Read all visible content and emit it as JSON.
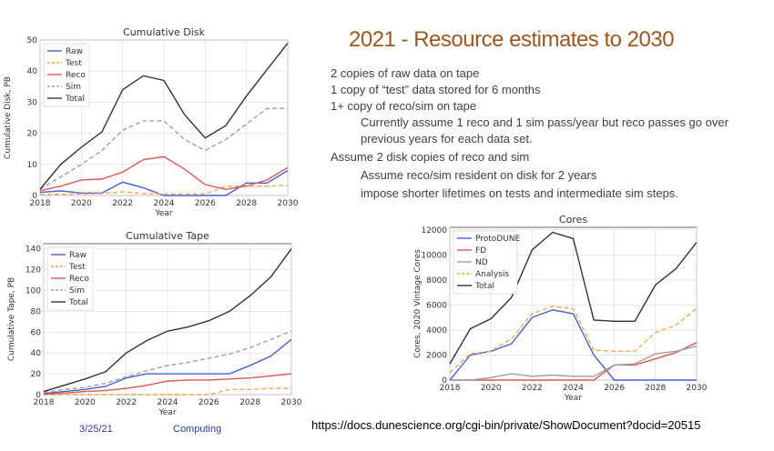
{
  "slide": {
    "title": "2021 - Resource estimates to 2030",
    "bullets": [
      {
        "level": 1,
        "text": "2 copies of raw data on tape"
      },
      {
        "level": 1,
        "text": "1 copy of “test” data stored for 6 months"
      },
      {
        "level": 1,
        "text": "1+ copy of reco/sim on tape"
      },
      {
        "level": 2,
        "text": "Currently assume 1 reco and 1 sim pass/year but reco passes go over previous years for each data set."
      },
      {
        "level": 1,
        "text": "Assume 2 disk copies of reco and sim"
      },
      {
        "level": 2,
        "text": "Assume reco/sim resident on disk for 2 years"
      },
      {
        "level": 2,
        "text": "impose shorter lifetimes on tests and intermediate sim steps."
      }
    ],
    "footer_date": "3/25/21",
    "footer_topic": "Computing",
    "footer_url": "https://docs.dunescience.org/cgi-bin/private/ShowDocument?docid=20515"
  },
  "chart_data": [
    {
      "type": "line",
      "title": "Cumulative Disk",
      "xlabel": "Year",
      "ylabel": "Cumulative Disk, PB",
      "xlim": [
        2018,
        2030
      ],
      "ylim": [
        0,
        50
      ],
      "xticks": [
        2018,
        2020,
        2022,
        2024,
        2026,
        2028,
        2030
      ],
      "yticks": [
        0,
        10,
        20,
        30,
        40,
        50
      ],
      "grid": true,
      "legend": "top-left",
      "x": [
        2018,
        2019,
        2020,
        2021,
        2022,
        2023,
        2024,
        2025,
        2026,
        2027,
        2028,
        2029,
        2030
      ],
      "series": [
        {
          "name": "Raw",
          "color": "#4c5fd5",
          "dash": "",
          "values": [
            1,
            1.5,
            0.8,
            0.8,
            4.3,
            2.5,
            0,
            0,
            0,
            0,
            4,
            4,
            8
          ]
        },
        {
          "name": "Test",
          "color": "#f0a84a",
          "dash": "5,3",
          "values": [
            0.3,
            0.4,
            0.5,
            0.6,
            1.2,
            0.6,
            0.5,
            0.5,
            0.5,
            3,
            3,
            3,
            3.3
          ]
        },
        {
          "name": "Reco",
          "color": "#e05555",
          "dash": "",
          "values": [
            1.5,
            3,
            5,
            5.3,
            7.5,
            11.5,
            12.5,
            8.5,
            3.5,
            2,
            3,
            5,
            9
          ]
        },
        {
          "name": "Sim",
          "color": "#a0a0a0",
          "dash": "5,3",
          "values": [
            2,
            6,
            10,
            14.5,
            21,
            24,
            24,
            18,
            14.5,
            18,
            23,
            28,
            28
          ]
        },
        {
          "name": "Total",
          "color": "#333333",
          "dash": "",
          "values": [
            2,
            10,
            15.5,
            20.5,
            34,
            38.5,
            37,
            26,
            18.5,
            22.5,
            32,
            40.5,
            49
          ]
        }
      ]
    },
    {
      "type": "line",
      "title": "Cumulative Tape",
      "xlabel": "Year",
      "ylabel": "Cumulative Tape, PB",
      "xlim": [
        2018,
        2030
      ],
      "ylim": [
        0,
        145
      ],
      "xticks": [
        2018,
        2020,
        2022,
        2024,
        2026,
        2028,
        2030
      ],
      "yticks": [
        0,
        20,
        40,
        60,
        80,
        100,
        120,
        140
      ],
      "grid": true,
      "legend": "top-left",
      "x": [
        2018,
        2019,
        2020,
        2021,
        2022,
        2023,
        2024,
        2025,
        2026,
        2027,
        2028,
        2029,
        2030
      ],
      "series": [
        {
          "name": "Raw",
          "color": "#4c5fd5",
          "dash": "",
          "values": [
            1,
            3,
            5,
            8,
            16,
            20,
            20,
            20,
            20,
            20,
            28,
            37,
            53
          ]
        },
        {
          "name": "Test",
          "color": "#f0a84a",
          "dash": "5,3",
          "values": [
            0,
            0,
            0,
            0,
            0,
            0,
            0,
            0,
            0,
            5,
            5,
            6,
            6
          ]
        },
        {
          "name": "Reco",
          "color": "#e05555",
          "dash": "",
          "values": [
            0.5,
            1.5,
            3,
            4,
            6,
            9,
            13,
            14,
            14,
            15,
            16,
            18,
            20
          ]
        },
        {
          "name": "Sim",
          "color": "#a0a0a0",
          "dash": "5,3",
          "values": [
            2,
            5,
            7,
            11,
            17,
            23,
            28,
            31,
            35,
            39,
            45,
            53,
            61
          ]
        },
        {
          "name": "Total",
          "color": "#333333",
          "dash": "",
          "values": [
            3,
            9,
            15,
            22,
            40,
            52,
            61,
            65,
            71,
            80,
            95,
            113,
            140
          ]
        }
      ]
    },
    {
      "type": "line",
      "title": "Cores",
      "xlabel": "Year",
      "ylabel": "Cores, 2020 Vintage Cores",
      "xlim": [
        2018,
        2030
      ],
      "ylim": [
        0,
        12200
      ],
      "xticks": [
        2018,
        2020,
        2022,
        2024,
        2026,
        2028,
        2030
      ],
      "yticks": [
        0,
        2000,
        4000,
        6000,
        8000,
        10000,
        12000
      ],
      "grid": true,
      "legend": "top-left",
      "x": [
        2018,
        2019,
        2020,
        2021,
        2022,
        2023,
        2024,
        2025,
        2026,
        2027,
        2028,
        2029,
        2030
      ],
      "series": [
        {
          "name": "ProtoDUNE",
          "color": "#4c5fd5",
          "dash": "",
          "values": [
            0,
            2000,
            2300,
            2900,
            5000,
            5600,
            5300,
            2000,
            0,
            0,
            0,
            0,
            0
          ]
        },
        {
          "name": "FD",
          "color": "#e05555",
          "dash": "",
          "values": [
            0,
            0,
            0,
            0,
            0,
            0,
            0,
            0,
            1200,
            1200,
            1700,
            2200,
            3000
          ]
        },
        {
          "name": "ND",
          "color": "#a0a0a0",
          "dash": "",
          "values": [
            0,
            0,
            200,
            500,
            300,
            400,
            300,
            300,
            1200,
            1300,
            2100,
            2300,
            2700
          ]
        },
        {
          "name": "Analysis",
          "color": "#f0a84a",
          "dash": "5,3",
          "values": [
            600,
            2100,
            2300,
            3300,
            5300,
            5900,
            5700,
            2400,
            2300,
            2300,
            3800,
            4400,
            5700
          ]
        },
        {
          "name": "Total",
          "color": "#333333",
          "dash": "",
          "values": [
            1300,
            4100,
            4900,
            6600,
            10400,
            11800,
            11300,
            4800,
            4700,
            4700,
            7600,
            8900,
            11000
          ]
        }
      ]
    }
  ]
}
